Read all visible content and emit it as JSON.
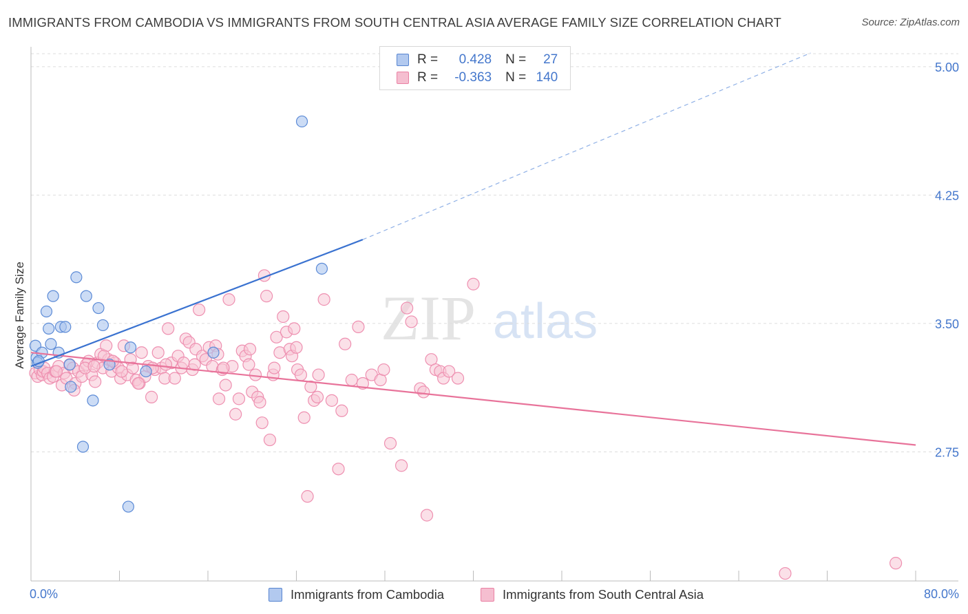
{
  "title": "IMMIGRANTS FROM CAMBODIA VS IMMIGRANTS FROM SOUTH CENTRAL ASIA AVERAGE FAMILY SIZE CORRELATION CHART",
  "source": "Source: ZipAtlas.com",
  "watermark": {
    "zip": "ZIP",
    "atlas": "atlas"
  },
  "legend": {
    "rows": [
      {
        "r_label": "R =",
        "r_value": "0.428",
        "n_label": "N =",
        "n_value": "27",
        "color": "#4477cc",
        "fill": "#aac4ee"
      },
      {
        "r_label": "R =",
        "r_value": "-0.363",
        "n_label": "N =",
        "n_value": "140",
        "color": "#e8739a",
        "fill": "#f5b8cb"
      }
    ]
  },
  "colors": {
    "cambodia_stroke": "#5b8ad6",
    "cambodia_fill": "#aac4ee",
    "cambodia_line": "#3a72d0",
    "sca_stroke": "#ee8fb0",
    "sca_fill": "#f8c6d6",
    "sca_line": "#e8739a",
    "axis_text": "#4477cc",
    "grid": "#dddddd"
  },
  "chart_data": {
    "type": "scatter",
    "title": "IMMIGRANTS FROM CAMBODIA VS IMMIGRANTS FROM SOUTH CENTRAL ASIA AVERAGE FAMILY SIZE CORRELATION CHART",
    "xlabel": "",
    "ylabel": "Average Family Size",
    "xlim": [
      0,
      80
    ],
    "ylim": [
      2.0,
      5.1
    ],
    "x_tick_labels": [
      "0.0%",
      "80.0%"
    ],
    "y_ticks": [
      2.75,
      3.5,
      4.25,
      5.0
    ],
    "y_tick_labels": [
      "2.75",
      "3.50",
      "4.25",
      "5.00"
    ],
    "grid": true,
    "legend_position": "bottom",
    "series": [
      {
        "name": "Immigrants from Cambodia",
        "points": [
          [
            0.4,
            3.37
          ],
          [
            0.5,
            3.3
          ],
          [
            0.6,
            3.27
          ],
          [
            1.0,
            3.33
          ],
          [
            1.4,
            3.57
          ],
          [
            1.6,
            3.47
          ],
          [
            1.8,
            3.38
          ],
          [
            2.0,
            3.66
          ],
          [
            2.5,
            3.33
          ],
          [
            2.7,
            3.48
          ],
          [
            3.1,
            3.48
          ],
          [
            3.5,
            3.26
          ],
          [
            3.6,
            3.13
          ],
          [
            4.1,
            3.77
          ],
          [
            4.7,
            2.78
          ],
          [
            5.0,
            3.66
          ],
          [
            5.6,
            3.05
          ],
          [
            6.1,
            3.59
          ],
          [
            6.5,
            3.49
          ],
          [
            7.1,
            3.26
          ],
          [
            8.8,
            2.43
          ],
          [
            9.0,
            3.36
          ],
          [
            10.4,
            3.22
          ],
          [
            16.5,
            3.33
          ],
          [
            24.5,
            4.68
          ],
          [
            26.3,
            3.82
          ],
          [
            0.7,
            3.28
          ]
        ],
        "trend": {
          "x": [
            0,
            30
          ],
          "y": [
            3.25,
            3.99
          ]
        },
        "trend_dashed": {
          "x": [
            30,
            70.5
          ],
          "y": [
            3.99,
            5.08
          ]
        }
      },
      {
        "name": "Immigrants from South Central Asia",
        "points": [
          [
            0.4,
            3.21
          ],
          [
            0.6,
            3.19
          ],
          [
            0.8,
            3.23
          ],
          [
            1.0,
            3.2
          ],
          [
            1.1,
            3.22
          ],
          [
            1.2,
            3.24
          ],
          [
            1.5,
            3.21
          ],
          [
            1.7,
            3.18
          ],
          [
            2.0,
            3.19
          ],
          [
            2.2,
            3.22
          ],
          [
            2.5,
            3.25
          ],
          [
            2.8,
            3.14
          ],
          [
            3.0,
            3.21
          ],
          [
            3.2,
            3.18
          ],
          [
            3.5,
            3.26
          ],
          [
            3.8,
            3.24
          ],
          [
            4.0,
            3.15
          ],
          [
            4.3,
            3.22
          ],
          [
            4.6,
            3.19
          ],
          [
            5.0,
            3.26
          ],
          [
            5.2,
            3.28
          ],
          [
            5.5,
            3.2
          ],
          [
            5.8,
            3.16
          ],
          [
            6.0,
            3.27
          ],
          [
            6.3,
            3.32
          ],
          [
            6.5,
            3.24
          ],
          [
            6.8,
            3.37
          ],
          [
            7.0,
            3.29
          ],
          [
            7.3,
            3.22
          ],
          [
            7.6,
            3.27
          ],
          [
            7.9,
            3.24
          ],
          [
            8.1,
            3.18
          ],
          [
            8.4,
            3.37
          ],
          [
            8.7,
            3.2
          ],
          [
            9.0,
            3.29
          ],
          [
            9.2,
            3.24
          ],
          [
            9.5,
            3.17
          ],
          [
            9.8,
            3.15
          ],
          [
            10.0,
            3.33
          ],
          [
            10.3,
            3.19
          ],
          [
            10.6,
            3.25
          ],
          [
            10.9,
            3.07
          ],
          [
            11.2,
            3.23
          ],
          [
            11.5,
            3.33
          ],
          [
            11.8,
            3.24
          ],
          [
            12.1,
            3.18
          ],
          [
            12.4,
            3.47
          ],
          [
            12.7,
            3.27
          ],
          [
            13.0,
            3.18
          ],
          [
            13.3,
            3.31
          ],
          [
            13.6,
            3.24
          ],
          [
            14.0,
            3.41
          ],
          [
            14.3,
            3.39
          ],
          [
            14.6,
            3.23
          ],
          [
            14.9,
            3.35
          ],
          [
            15.2,
            3.58
          ],
          [
            15.5,
            3.31
          ],
          [
            15.8,
            3.29
          ],
          [
            16.1,
            3.36
          ],
          [
            16.4,
            3.25
          ],
          [
            16.7,
            3.37
          ],
          [
            17.0,
            3.06
          ],
          [
            17.3,
            3.23
          ],
          [
            17.6,
            3.14
          ],
          [
            17.9,
            3.64
          ],
          [
            18.2,
            3.25
          ],
          [
            18.5,
            2.97
          ],
          [
            18.8,
            3.06
          ],
          [
            19.1,
            3.34
          ],
          [
            19.4,
            3.31
          ],
          [
            19.7,
            3.26
          ],
          [
            20.0,
            3.1
          ],
          [
            20.3,
            3.2
          ],
          [
            20.5,
            3.07
          ],
          [
            20.7,
            3.04
          ],
          [
            20.9,
            2.92
          ],
          [
            21.1,
            3.78
          ],
          [
            21.3,
            3.66
          ],
          [
            21.6,
            2.82
          ],
          [
            21.9,
            3.2
          ],
          [
            22.2,
            3.42
          ],
          [
            22.5,
            3.33
          ],
          [
            22.8,
            3.54
          ],
          [
            23.1,
            3.45
          ],
          [
            23.4,
            3.35
          ],
          [
            23.6,
            3.31
          ],
          [
            23.8,
            3.47
          ],
          [
            24.1,
            3.23
          ],
          [
            24.4,
            3.2
          ],
          [
            24.7,
            2.95
          ],
          [
            25.0,
            2.49
          ],
          [
            25.3,
            3.13
          ],
          [
            25.6,
            3.05
          ],
          [
            25.9,
            3.07
          ],
          [
            26.5,
            3.64
          ],
          [
            27.2,
            3.05
          ],
          [
            27.8,
            2.65
          ],
          [
            28.1,
            2.99
          ],
          [
            28.4,
            3.38
          ],
          [
            29.0,
            3.17
          ],
          [
            29.6,
            3.48
          ],
          [
            30.8,
            3.2
          ],
          [
            31.6,
            3.17
          ],
          [
            31.9,
            3.23
          ],
          [
            32.5,
            2.8
          ],
          [
            33.5,
            2.67
          ],
          [
            34.0,
            3.59
          ],
          [
            34.4,
            3.51
          ],
          [
            35.2,
            3.12
          ],
          [
            35.8,
            2.38
          ],
          [
            35.5,
            3.1
          ],
          [
            36.2,
            3.29
          ],
          [
            36.6,
            3.23
          ],
          [
            37.0,
            3.22
          ],
          [
            37.3,
            3.18
          ],
          [
            40.0,
            3.73
          ],
          [
            37.8,
            3.22
          ],
          [
            38.6,
            3.18
          ],
          [
            68.2,
            2.04
          ],
          [
            78.2,
            2.1
          ],
          [
            3.9,
            3.11
          ],
          [
            6.6,
            3.31
          ],
          [
            9.7,
            3.15
          ],
          [
            13.8,
            3.27
          ],
          [
            16.9,
            3.32
          ],
          [
            19.8,
            3.35
          ],
          [
            22.0,
            3.24
          ],
          [
            24.0,
            3.36
          ],
          [
            26.0,
            3.2
          ],
          [
            30.0,
            3.15
          ],
          [
            4.9,
            3.24
          ],
          [
            8.2,
            3.22
          ],
          [
            11.0,
            3.24
          ],
          [
            14.8,
            3.26
          ],
          [
            17.4,
            3.24
          ],
          [
            2.3,
            3.22
          ],
          [
            5.7,
            3.25
          ],
          [
            7.4,
            3.28
          ],
          [
            12.2,
            3.26
          ]
        ],
        "trend": {
          "x": [
            0,
            80
          ],
          "y": [
            3.33,
            2.79
          ]
        }
      }
    ]
  },
  "bottom_legend": [
    {
      "label": "Immigrants from Cambodia"
    },
    {
      "label": "Immigrants from South Central Asia"
    }
  ]
}
